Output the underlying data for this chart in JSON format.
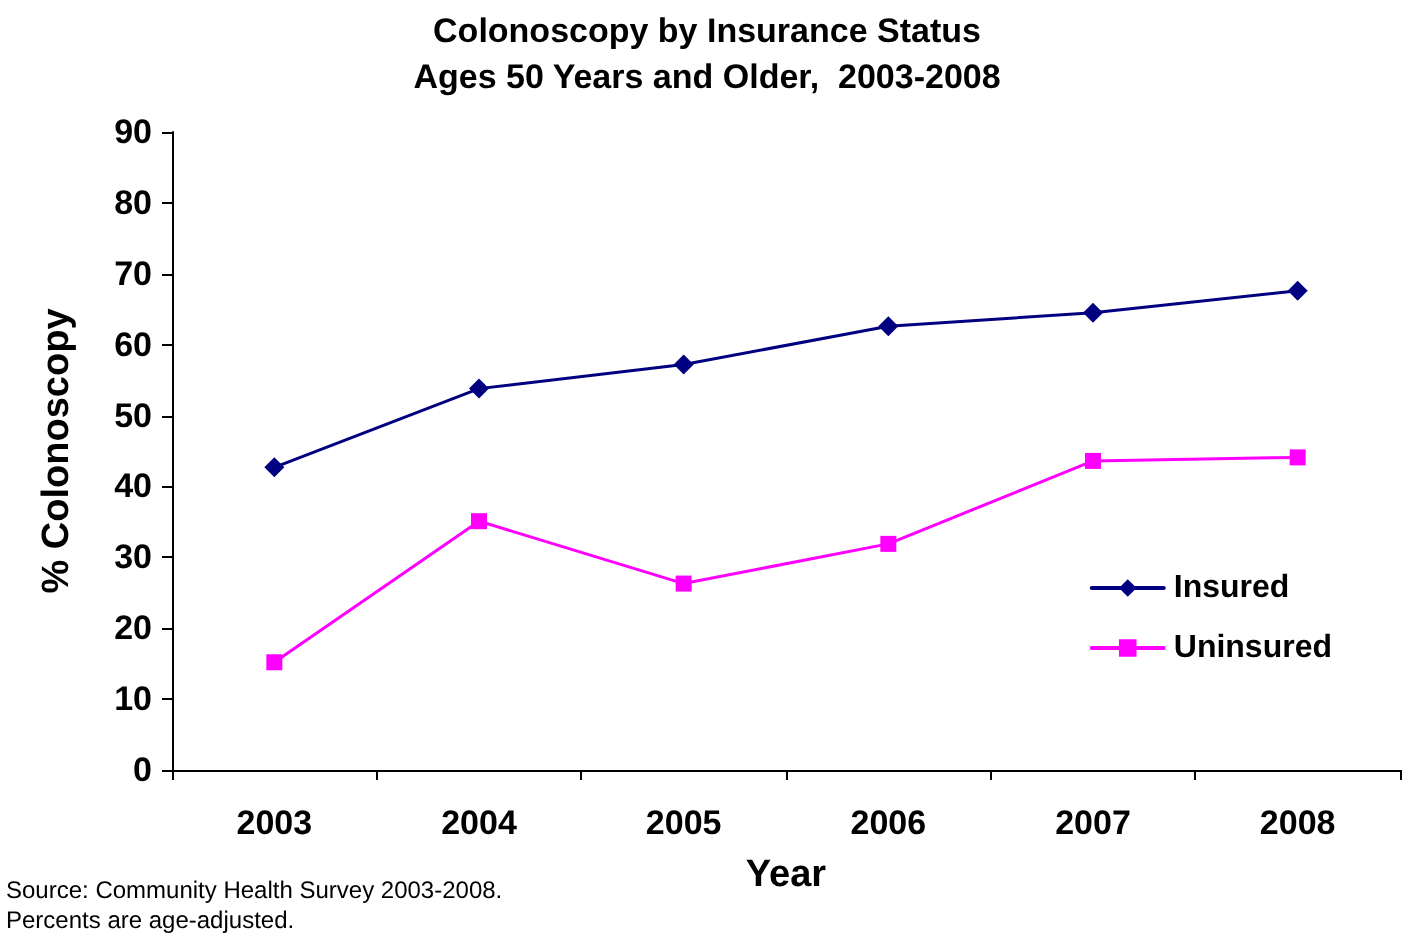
{
  "chart_data": {
    "type": "line",
    "title": "Colonoscopy by Insurance Status",
    "subtitle": "Ages 50 Years and Older,  2003-2008",
    "xlabel": "Year",
    "ylabel": "% Colonoscopy",
    "categories": [
      "2003",
      "2004",
      "2005",
      "2006",
      "2007",
      "2008"
    ],
    "series": [
      {
        "name": "Insured",
        "color": "#000080",
        "marker": "diamond",
        "values": [
          42.7,
          53.8,
          57.2,
          62.6,
          64.5,
          67.6
        ]
      },
      {
        "name": "Uninsured",
        "color": "#ff00ff",
        "marker": "square",
        "values": [
          15.2,
          35.1,
          26.3,
          31.9,
          43.6,
          44.1
        ]
      }
    ],
    "ylim": [
      0,
      90
    ],
    "yticks": [
      0,
      10,
      20,
      30,
      40,
      50,
      60,
      70,
      80,
      90
    ],
    "grid": false,
    "legend": "right",
    "line_style": "solid",
    "annotations": [
      "Source: Community Health Survey 2003-2008.",
      "Percents are age-adjusted."
    ]
  }
}
